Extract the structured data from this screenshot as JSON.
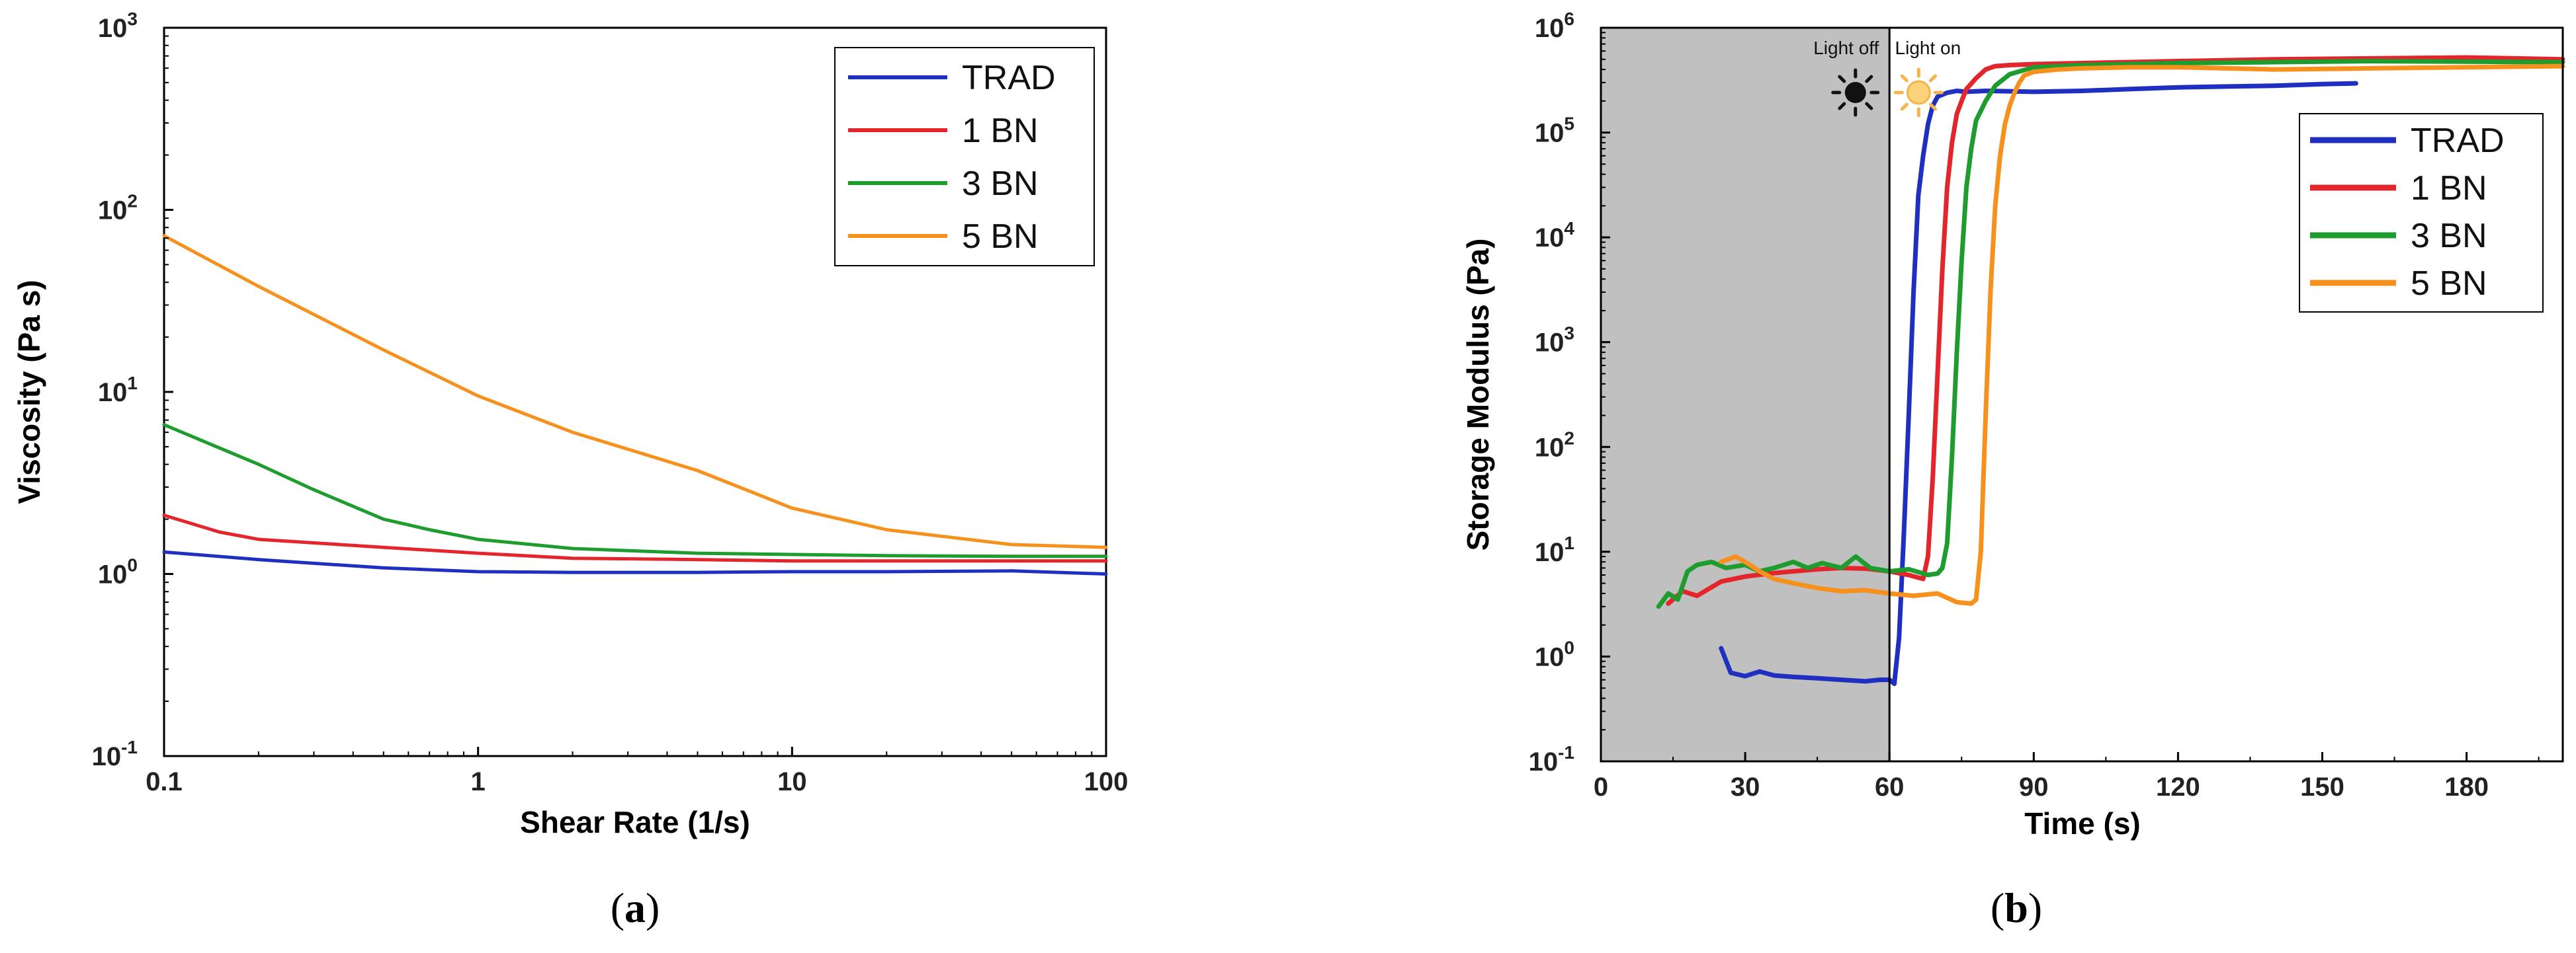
{
  "chart_data": [
    {
      "id": "a",
      "type": "line",
      "panel_label": "a",
      "xscale": "log",
      "yscale": "log",
      "xlabel": "Shear Rate (1/s)",
      "ylabel": "Viscosity (Pa s)",
      "xlim": [
        0.1,
        100
      ],
      "ylim": [
        0.1,
        1000
      ],
      "x_ticks": [
        {
          "value": 0.1,
          "label": "0.1"
        },
        {
          "value": 1,
          "label": "1"
        },
        {
          "value": 10,
          "label": "10"
        },
        {
          "value": 100,
          "label": "100"
        }
      ],
      "y_ticks": [
        {
          "value": 0.1,
          "base": "10",
          "exp": "-1"
        },
        {
          "value": 1,
          "base": "10",
          "exp": "0"
        },
        {
          "value": 10,
          "base": "10",
          "exp": "1"
        },
        {
          "value": 100,
          "base": "10",
          "exp": "2"
        },
        {
          "value": 1000,
          "base": "10",
          "exp": "3"
        }
      ],
      "legend_position": "top-right",
      "series": [
        {
          "name": "TRAD",
          "color": "#1f2fbf",
          "x": [
            0.1,
            0.2,
            0.5,
            1,
            2,
            5,
            10,
            20,
            50,
            100
          ],
          "y": [
            1.32,
            1.2,
            1.08,
            1.03,
            1.02,
            1.02,
            1.03,
            1.03,
            1.04,
            1.0
          ]
        },
        {
          "name": "1 BN",
          "color": "#e3262c",
          "x": [
            0.1,
            0.15,
            0.2,
            0.5,
            1,
            2,
            5,
            10,
            20,
            50,
            100
          ],
          "y": [
            2.1,
            1.7,
            1.55,
            1.4,
            1.3,
            1.22,
            1.2,
            1.18,
            1.18,
            1.18,
            1.18
          ]
        },
        {
          "name": "3 BN",
          "color": "#1e9c2e",
          "x": [
            0.1,
            0.2,
            0.3,
            0.5,
            0.7,
            1,
            2,
            5,
            10,
            20,
            50,
            100
          ],
          "y": [
            6.6,
            4.0,
            2.9,
            2.0,
            1.75,
            1.55,
            1.38,
            1.3,
            1.28,
            1.26,
            1.25,
            1.25
          ]
        },
        {
          "name": "5 BN",
          "color": "#f7911d",
          "x": [
            0.1,
            0.2,
            0.5,
            1,
            2,
            5,
            10,
            20,
            50,
            100
          ],
          "y": [
            72,
            38,
            17,
            9.5,
            6,
            3.7,
            2.3,
            1.75,
            1.45,
            1.4
          ]
        }
      ]
    },
    {
      "id": "b",
      "type": "line",
      "panel_label": "b",
      "xscale": "linear",
      "yscale": "log",
      "xlabel": "Time (s)",
      "ylabel": "Storage Modulus (Pa)",
      "xlim": [
        0,
        200
      ],
      "ylim": [
        0.1,
        1000000
      ],
      "x_ticks": [
        {
          "value": 0,
          "label": "0"
        },
        {
          "value": 30,
          "label": "30"
        },
        {
          "value": 60,
          "label": "60"
        },
        {
          "value": 90,
          "label": "90"
        },
        {
          "value": 120,
          "label": "120"
        },
        {
          "value": 150,
          "label": "150"
        },
        {
          "value": 180,
          "label": "180"
        }
      ],
      "y_ticks": [
        {
          "value": 0.1,
          "base": "10",
          "exp": "-1"
        },
        {
          "value": 1,
          "base": "10",
          "exp": "0"
        },
        {
          "value": 10,
          "base": "10",
          "exp": "1"
        },
        {
          "value": 100,
          "base": "10",
          "exp": "2"
        },
        {
          "value": 1000,
          "base": "10",
          "exp": "3"
        },
        {
          "value": 10000,
          "base": "10",
          "exp": "4"
        },
        {
          "value": 100000,
          "base": "10",
          "exp": "5"
        },
        {
          "value": 1000000,
          "base": "10",
          "exp": "6"
        }
      ],
      "shaded_region": {
        "x_start": 0,
        "x_end": 60,
        "color": "#c0c0c0"
      },
      "vline_x": 60,
      "annotations": [
        {
          "text": "Light off",
          "icon": "dark-sun-icon",
          "x": 51
        },
        {
          "text": "Light on",
          "icon": "bright-sun-icon",
          "x": 68
        }
      ],
      "legend_position": "right",
      "series": [
        {
          "name": "TRAD",
          "color": "#1f2fbf",
          "x": [
            25,
            27,
            30,
            33,
            36,
            40,
            45,
            50,
            55,
            58,
            60,
            61,
            62,
            63,
            64,
            65,
            66,
            67,
            68,
            69,
            70,
            72,
            74,
            76,
            80,
            90,
            100,
            110,
            120,
            130,
            140,
            150,
            157
          ],
          "y": [
            1.2,
            0.7,
            0.65,
            0.72,
            0.66,
            0.64,
            0.62,
            0.6,
            0.58,
            0.6,
            0.6,
            0.55,
            1.5,
            15,
            200,
            3000,
            25000,
            60000,
            120000,
            180000,
            220000,
            240000,
            250000,
            245000,
            250000,
            245000,
            250000,
            260000,
            270000,
            275000,
            280000,
            290000,
            295000
          ]
        },
        {
          "name": "1 BN",
          "color": "#e3262c",
          "x": [
            14,
            17,
            20,
            25,
            30,
            35,
            40,
            45,
            50,
            55,
            60,
            64,
            67,
            68,
            69,
            70,
            71,
            72,
            73,
            74,
            75,
            76,
            78,
            80,
            82,
            85,
            90,
            100,
            120,
            140,
            160,
            180,
            200
          ],
          "y": [
            3.2,
            4.2,
            3.8,
            5.2,
            5.8,
            6.2,
            6.5,
            6.8,
            7.0,
            6.9,
            6.5,
            6.0,
            5.5,
            9,
            50,
            500,
            5000,
            30000,
            80000,
            150000,
            200000,
            260000,
            330000,
            400000,
            430000,
            440000,
            450000,
            460000,
            480000,
            500000,
            510000,
            520000,
            500000
          ]
        },
        {
          "name": "3 BN",
          "color": "#1e9c2e",
          "x": [
            12,
            14,
            16,
            18,
            20,
            23,
            26,
            30,
            33,
            36,
            40,
            43,
            46,
            50,
            53,
            56,
            60,
            64,
            68,
            70,
            71,
            72,
            73,
            74,
            75,
            76,
            77,
            78,
            80,
            82,
            85,
            90,
            100,
            120,
            140,
            160,
            180,
            200
          ],
          "y": [
            3.0,
            4.0,
            3.5,
            6.5,
            7.5,
            8.0,
            7.0,
            7.5,
            6.5,
            7.0,
            8.0,
            7.0,
            7.8,
            7.0,
            9.0,
            7.0,
            6.5,
            6.8,
            6.0,
            6.2,
            7.0,
            12,
            80,
            800,
            6000,
            30000,
            70000,
            130000,
            200000,
            280000,
            360000,
            420000,
            440000,
            460000,
            470000,
            480000,
            475000,
            470000
          ]
        },
        {
          "name": "5 BN",
          "color": "#f7911d",
          "x": [
            25,
            28,
            30,
            33,
            36,
            40,
            45,
            50,
            55,
            60,
            65,
            70,
            74,
            77,
            78,
            79,
            80,
            81,
            82,
            83,
            84,
            85,
            86,
            87,
            88,
            90,
            95,
            100,
            110,
            120,
            140,
            160,
            180,
            200
          ],
          "y": [
            8.0,
            9.0,
            8.0,
            6.5,
            5.5,
            5.0,
            4.5,
            4.2,
            4.3,
            4.0,
            3.8,
            4.0,
            3.3,
            3.2,
            3.5,
            10,
            200,
            3000,
            20000,
            60000,
            120000,
            180000,
            240000,
            300000,
            350000,
            380000,
            400000,
            410000,
            420000,
            420000,
            400000,
            410000,
            420000,
            430000
          ]
        }
      ]
    }
  ]
}
